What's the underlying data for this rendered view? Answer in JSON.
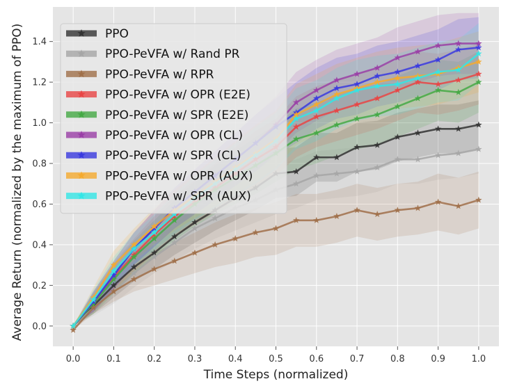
{
  "chart_data": {
    "type": "line",
    "title": "",
    "xlabel": "Time Steps (normalized)",
    "ylabel": "Average Return (normalized by the maximum of PPO)",
    "xlim": [
      -0.05,
      1.05
    ],
    "ylim": [
      -0.1,
      1.57
    ],
    "xticks": [
      0.0,
      0.1,
      0.2,
      0.3,
      0.4,
      0.5,
      0.6,
      0.7,
      0.8,
      0.9,
      1.0
    ],
    "xtick_labels": [
      "0.0",
      "0.1",
      "0.2",
      "0.3",
      "0.4",
      "0.5",
      "0.6",
      "0.7",
      "0.8",
      "0.9",
      "1.0"
    ],
    "yticks": [
      0.0,
      0.2,
      0.4,
      0.6,
      0.8,
      1.0,
      1.2,
      1.4
    ],
    "ytick_labels": [
      "0.0",
      "0.2",
      "0.4",
      "0.6",
      "0.8",
      "1.0",
      "1.2",
      "1.4"
    ],
    "grid": true,
    "legend_position": "top-left",
    "x": [
      0.0,
      0.05,
      0.1,
      0.15,
      0.2,
      0.25,
      0.3,
      0.35,
      0.4,
      0.45,
      0.5,
      0.55,
      0.6,
      0.65,
      0.7,
      0.75,
      0.8,
      0.85,
      0.9,
      0.95,
      1.0
    ],
    "series": [
      {
        "name": "PPO",
        "color": "#333333",
        "values": [
          0.0,
          0.1,
          0.2,
          0.29,
          0.36,
          0.44,
          0.51,
          0.57,
          0.63,
          0.68,
          0.75,
          0.76,
          0.83,
          0.83,
          0.88,
          0.89,
          0.93,
          0.95,
          0.97,
          0.97,
          0.99
        ],
        "band": [
          0.0,
          0.04,
          0.06,
          0.07,
          0.08,
          0.09,
          0.1,
          0.1,
          0.11,
          0.11,
          0.12,
          0.12,
          0.12,
          0.12,
          0.12,
          0.12,
          0.12,
          0.12,
          0.12,
          0.12,
          0.12
        ]
      },
      {
        "name": "PPO-PeVFA w/ Rand PR",
        "color": "#a6a6a6",
        "values": [
          0.0,
          0.09,
          0.17,
          0.26,
          0.34,
          0.41,
          0.48,
          0.53,
          0.58,
          0.62,
          0.67,
          0.7,
          0.74,
          0.75,
          0.76,
          0.78,
          0.82,
          0.82,
          0.84,
          0.85,
          0.87
        ],
        "band": [
          0.0,
          0.04,
          0.06,
          0.07,
          0.08,
          0.09,
          0.1,
          0.1,
          0.11,
          0.11,
          0.12,
          0.12,
          0.12,
          0.12,
          0.12,
          0.12,
          0.12,
          0.12,
          0.12,
          0.12,
          0.12
        ]
      },
      {
        "name": "PPO-PeVFA w/ RPR",
        "color": "#a0704a",
        "values": [
          -0.02,
          0.09,
          0.17,
          0.23,
          0.28,
          0.32,
          0.36,
          0.4,
          0.43,
          0.46,
          0.48,
          0.52,
          0.52,
          0.54,
          0.57,
          0.55,
          0.57,
          0.58,
          0.61,
          0.59,
          0.62
        ],
        "band": [
          0.0,
          0.03,
          0.05,
          0.06,
          0.08,
          0.09,
          0.1,
          0.11,
          0.12,
          0.12,
          0.13,
          0.13,
          0.13,
          0.13,
          0.13,
          0.13,
          0.13,
          0.13,
          0.14,
          0.14,
          0.14
        ]
      },
      {
        "name": "PPO-PeVFA w/ OPR (E2E)",
        "color": "#e84545",
        "values": [
          0.0,
          0.12,
          0.24,
          0.35,
          0.45,
          0.54,
          0.61,
          0.68,
          0.75,
          0.82,
          0.88,
          0.98,
          1.03,
          1.06,
          1.09,
          1.12,
          1.16,
          1.2,
          1.19,
          1.21,
          1.24
        ],
        "band": [
          0.0,
          0.05,
          0.07,
          0.08,
          0.09,
          0.1,
          0.11,
          0.12,
          0.13,
          0.14,
          0.14,
          0.15,
          0.15,
          0.15,
          0.15,
          0.15,
          0.15,
          0.15,
          0.15,
          0.15,
          0.15
        ]
      },
      {
        "name": "PPO-PeVFA w/ SPR (E2E)",
        "color": "#45a945",
        "values": [
          0.0,
          0.11,
          0.23,
          0.34,
          0.43,
          0.52,
          0.6,
          0.67,
          0.73,
          0.79,
          0.85,
          0.92,
          0.95,
          0.99,
          1.02,
          1.04,
          1.08,
          1.12,
          1.16,
          1.15,
          1.2
        ],
        "band": [
          0.0,
          0.05,
          0.07,
          0.08,
          0.09,
          0.1,
          0.11,
          0.12,
          0.13,
          0.14,
          0.14,
          0.15,
          0.15,
          0.15,
          0.15,
          0.15,
          0.15,
          0.15,
          0.15,
          0.15,
          0.15
        ]
      },
      {
        "name": "PPO-PeVFA w/ OPR (CL)",
        "color": "#9a3fa6",
        "values": [
          0.0,
          0.12,
          0.25,
          0.38,
          0.48,
          0.58,
          0.66,
          0.74,
          0.82,
          0.9,
          0.99,
          1.1,
          1.16,
          1.21,
          1.24,
          1.27,
          1.32,
          1.35,
          1.38,
          1.39,
          1.39
        ],
        "band": [
          0.0,
          0.05,
          0.07,
          0.08,
          0.09,
          0.1,
          0.11,
          0.12,
          0.13,
          0.14,
          0.14,
          0.15,
          0.15,
          0.15,
          0.15,
          0.15,
          0.15,
          0.15,
          0.15,
          0.15,
          0.15
        ]
      },
      {
        "name": "PPO-PeVFA w/ SPR (CL)",
        "color": "#3a3adf",
        "values": [
          0.0,
          0.12,
          0.25,
          0.38,
          0.48,
          0.58,
          0.66,
          0.74,
          0.82,
          0.9,
          0.98,
          1.05,
          1.12,
          1.17,
          1.19,
          1.23,
          1.25,
          1.28,
          1.31,
          1.36,
          1.37
        ],
        "band": [
          0.0,
          0.05,
          0.07,
          0.08,
          0.09,
          0.1,
          0.11,
          0.12,
          0.13,
          0.14,
          0.14,
          0.15,
          0.15,
          0.15,
          0.15,
          0.15,
          0.15,
          0.15,
          0.15,
          0.15,
          0.15
        ]
      },
      {
        "name": "PPO-PeVFA w/ OPR (AUX)",
        "color": "#f5aa2e",
        "values": [
          0.0,
          0.14,
          0.3,
          0.4,
          0.49,
          0.57,
          0.64,
          0.71,
          0.78,
          0.85,
          0.92,
          1.04,
          1.09,
          1.14,
          1.17,
          1.2,
          1.22,
          1.23,
          1.24,
          1.27,
          1.3
        ],
        "band": [
          0.0,
          0.05,
          0.07,
          0.08,
          0.09,
          0.1,
          0.11,
          0.12,
          0.13,
          0.14,
          0.14,
          0.15,
          0.15,
          0.15,
          0.15,
          0.15,
          0.15,
          0.15,
          0.15,
          0.15,
          0.15
        ]
      },
      {
        "name": "PPO-PeVFA w/ SPR (AUX)",
        "color": "#33e6e6",
        "values": [
          0.0,
          0.13,
          0.27,
          0.38,
          0.46,
          0.55,
          0.63,
          0.7,
          0.77,
          0.84,
          0.91,
          1.02,
          1.06,
          1.12,
          1.16,
          1.18,
          1.19,
          1.22,
          1.25,
          1.26,
          1.34
        ],
        "band": [
          0.0,
          0.05,
          0.07,
          0.08,
          0.09,
          0.1,
          0.11,
          0.12,
          0.13,
          0.14,
          0.14,
          0.15,
          0.15,
          0.15,
          0.15,
          0.15,
          0.15,
          0.15,
          0.15,
          0.15,
          0.15
        ]
      }
    ]
  }
}
